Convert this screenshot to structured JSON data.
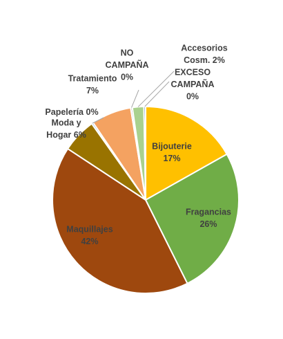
{
  "chart_data": {
    "type": "pie",
    "title": "",
    "legend": "none",
    "slices": [
      {
        "name": "Bijouterie",
        "value": 17,
        "label_name": "Bijouterie",
        "label_value": "17%",
        "color": "#FFC000",
        "label_color": "#404040"
      },
      {
        "name": "Fragancias",
        "value": 26,
        "label_name": "Fragancias",
        "label_value": "26%",
        "color": "#70AD47",
        "label_color": "#404040"
      },
      {
        "name": "Maquillajes",
        "value": 42,
        "label_name": "Maquillajes",
        "label_value": "42%",
        "color": "#9E480E",
        "label_color": "#404040"
      },
      {
        "name": "Moda y Hogar",
        "value": 6,
        "label_name": "Moda y Hogar",
        "label_value": "6%",
        "color": "#997300",
        "label_color": "#404040"
      },
      {
        "name": "Papelería",
        "value": 0.3,
        "label_name": "Papelería 0%",
        "label_value": "",
        "color": "#5B9BD5",
        "label_color": "#404040"
      },
      {
        "name": "Tratamiento",
        "value": 7,
        "label_name": "Tratamiento",
        "label_value": "7%",
        "color": "#F4A261",
        "label_color": "#404040"
      },
      {
        "name": "NO CAMPAÑA",
        "value": 0.3,
        "label_name": "NO CAMPAÑA",
        "label_value": "0%",
        "color": "#A5A5A5",
        "label_color": "#404040"
      },
      {
        "name": "Accesorios Cosm.",
        "value": 2,
        "label_name": "Accesorios Cosm. 2%",
        "label_value": "",
        "color": "#A9D18E",
        "label_color": "#404040"
      },
      {
        "name": "EXCESO CAMPAÑA",
        "value": 0.3,
        "label_name": "EXCESO CAMPAÑA",
        "label_value": "0%",
        "color": "#4472C4",
        "label_color": "#404040"
      }
    ]
  }
}
